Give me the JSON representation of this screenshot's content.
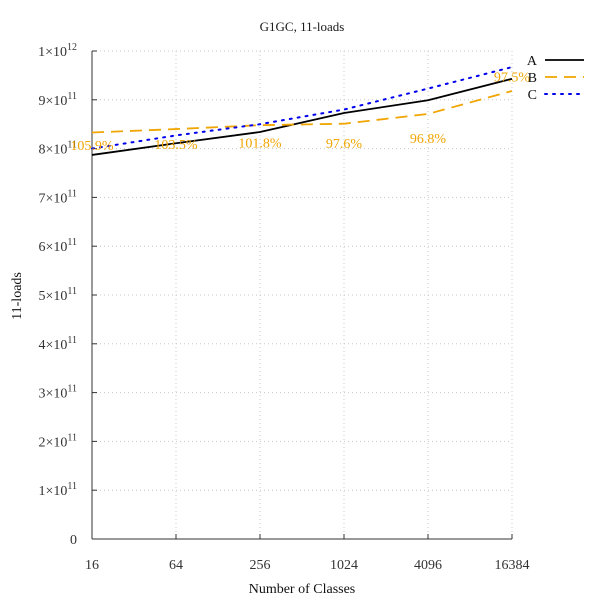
{
  "chart_data": {
    "type": "line",
    "title": "G1GC, 11-loads",
    "xlabel": "Number of Classes",
    "ylabel": "11-loads",
    "x_scale": "log2",
    "x": [
      16,
      64,
      256,
      1024,
      4096,
      16384
    ],
    "x_tick_labels": [
      "16",
      "64",
      "256",
      "1024",
      "4096",
      "16384"
    ],
    "ylim": [
      0,
      1000000000000
    ],
    "y_tick_values": [
      0,
      100000000000,
      200000000000,
      300000000000,
      400000000000,
      500000000000,
      600000000000,
      700000000000,
      800000000000,
      900000000000,
      1000000000000
    ],
    "y_tick_labels": [
      {
        "mant": "0",
        "exp": ""
      },
      {
        "mant": "1×10",
        "exp": "11"
      },
      {
        "mant": "2×10",
        "exp": "11"
      },
      {
        "mant": "3×10",
        "exp": "11"
      },
      {
        "mant": "4×10",
        "exp": "11"
      },
      {
        "mant": "5×10",
        "exp": "11"
      },
      {
        "mant": "6×10",
        "exp": "11"
      },
      {
        "mant": "7×10",
        "exp": "11"
      },
      {
        "mant": "8×10",
        "exp": "11"
      },
      {
        "mant": "9×10",
        "exp": "11"
      },
      {
        "mant": "1×10",
        "exp": "12"
      }
    ],
    "grid": true,
    "legend_position": "top-right",
    "series": [
      {
        "name": "A",
        "color": "#000000",
        "dash": "solid",
        "values": [
          787000000000,
          811000000000,
          834000000000,
          873000000000,
          899000000000,
          943000000000
        ]
      },
      {
        "name": "B",
        "color": "#f0a500",
        "dash": "dashed",
        "values": [
          833000000000,
          840000000000,
          848000000000,
          851000000000,
          871000000000,
          918000000000
        ]
      },
      {
        "name": "C",
        "color": "#0000ee",
        "dash": "dotted",
        "values": [
          800000000000,
          827000000000,
          850000000000,
          880000000000,
          923000000000,
          967000000000
        ]
      }
    ],
    "annotations": [
      {
        "text": "105.9%",
        "x": 16,
        "y": 797000000000
      },
      {
        "text": "103.5%",
        "x": 64,
        "y": 799000000000
      },
      {
        "text": "101.8%",
        "x": 256,
        "y": 802000000000
      },
      {
        "text": "97.6%",
        "x": 1024,
        "y": 801000000000
      },
      {
        "text": "96.8%",
        "x": 4096,
        "y": 811000000000
      },
      {
        "text": "97.5%",
        "x": 16384,
        "y": 937000000000
      }
    ]
  }
}
